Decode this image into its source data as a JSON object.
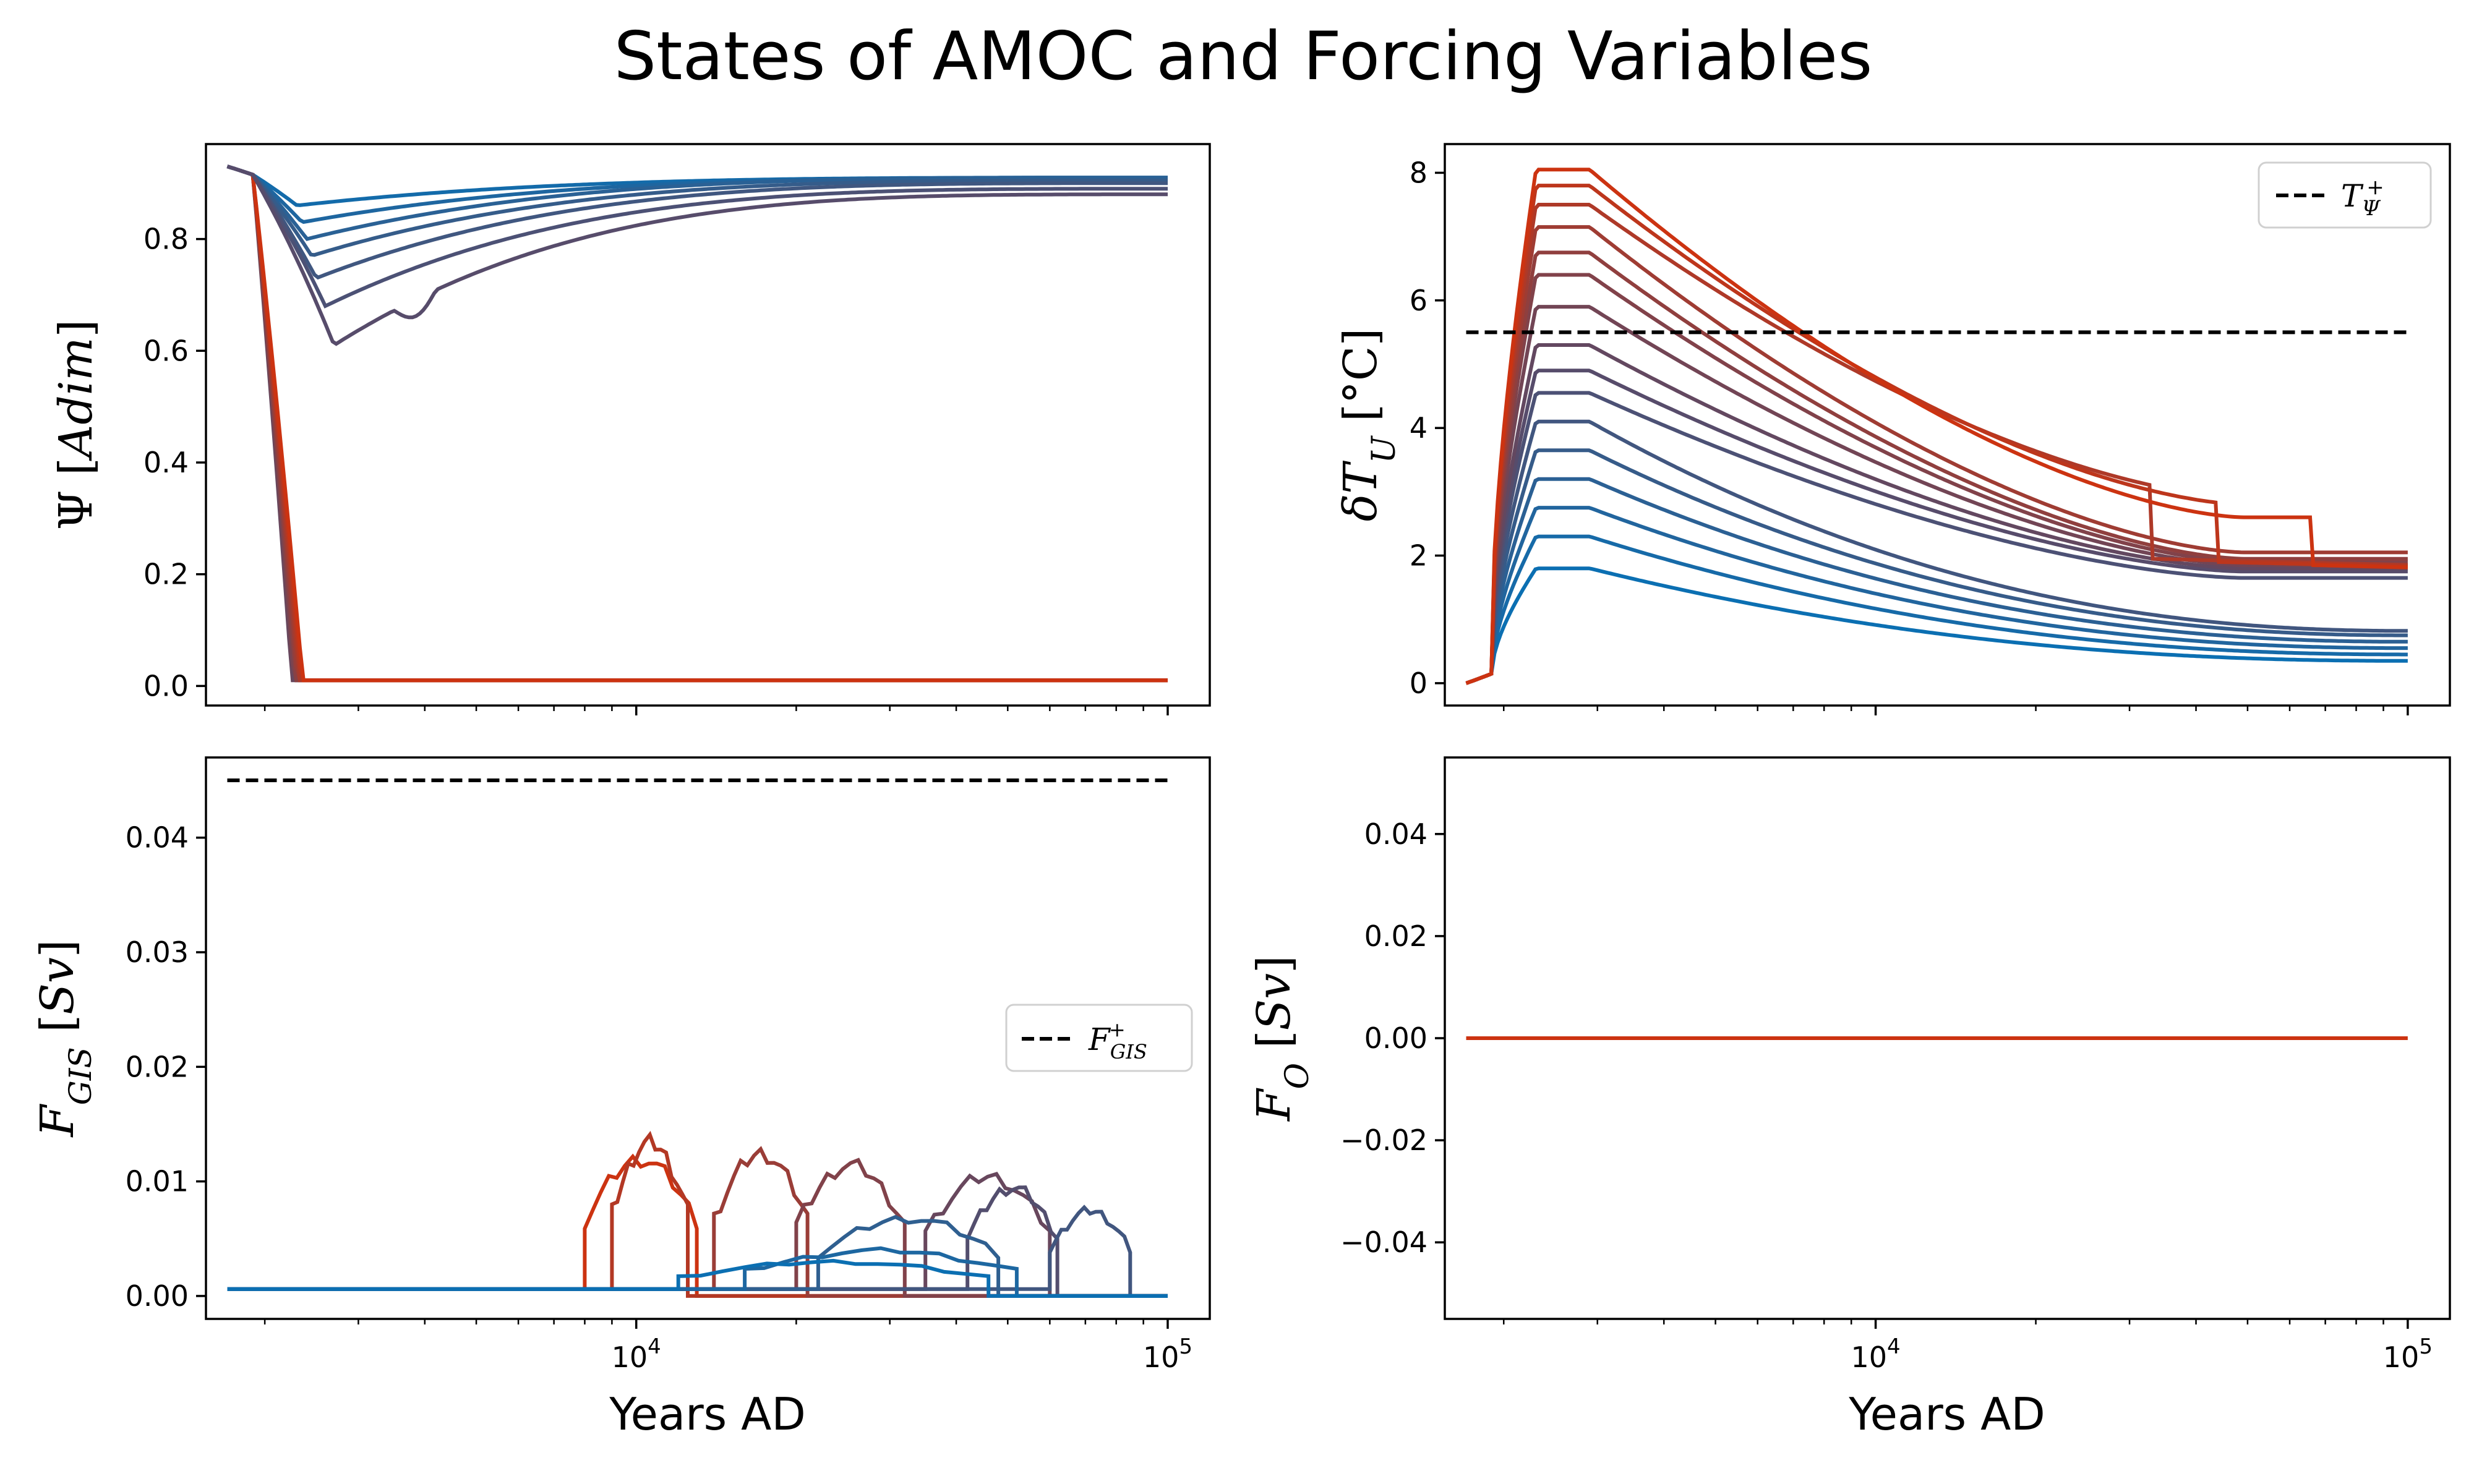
{
  "figure_title": "States of AMOC and Forcing Variables",
  "colors": {
    "start": "#0b6fb2",
    "end": "#cc3311",
    "mid": "#5c4a66",
    "threshold": "#000000"
  },
  "chart_data": [
    {
      "id": "psi",
      "type": "line",
      "ylabel": {
        "sym": "Ψ",
        "unit": "Adim"
      },
      "xscale": "log",
      "xlim": [
        1550,
        120000
      ],
      "ylim": [
        -0.035,
        0.97
      ],
      "yticks": [
        "0.0",
        "0.2",
        "0.4",
        "0.6",
        "0.8"
      ],
      "ytick_values": [
        0,
        0.2,
        0.4,
        0.6,
        0.8
      ],
      "collapse": {
        "final_value": 0.01
      },
      "recovering_runs": [
        {
          "dip_min": 0.86,
          "dip_at": 2300,
          "end_value": 0.91
        },
        {
          "dip_min": 0.83,
          "dip_at": 2350,
          "end_value": 0.91
        },
        {
          "dip_min": 0.8,
          "dip_at": 2400,
          "end_value": 0.91
        },
        {
          "dip_min": 0.77,
          "dip_at": 2450,
          "end_value": 0.905
        },
        {
          "dip_min": 0.73,
          "dip_at": 2500,
          "end_value": 0.9
        },
        {
          "dip_min": 0.68,
          "dip_at": 2600,
          "end_value": 0.89
        },
        {
          "dip_min": 0.61,
          "dip_at": 2700,
          "end_value": 0.88
        }
      ],
      "collapsing_runs": 7
    },
    {
      "id": "dtu",
      "type": "line",
      "ylabel": {
        "sym": "δT",
        "sub": "U",
        "unit": "°C"
      },
      "xscale": "log",
      "xlim": [
        1550,
        120000
      ],
      "ylim": [
        -0.35,
        8.45
      ],
      "yticks": [
        "0",
        "2",
        "4",
        "6",
        "8"
      ],
      "ytick_values": [
        0,
        2,
        4,
        6,
        8
      ],
      "threshold": {
        "value": 5.5,
        "legend_sym": "T",
        "legend_sub": "Ψ",
        "legend_sup": "+"
      },
      "legend_location": "upper right",
      "peaks": [
        1.8,
        2.3,
        2.75,
        3.2,
        3.65,
        4.1,
        4.55,
        4.9,
        5.3,
        5.9,
        6.4,
        6.75,
        7.15,
        7.5,
        7.8,
        8.05
      ],
      "end_values": [
        0.35,
        0.45,
        0.55,
        0.65,
        0.75,
        0.82,
        1.35,
        1.45,
        1.5,
        1.55,
        1.6,
        1.65,
        1.75,
        1.8,
        1.85,
        1.9
      ],
      "late_step_drops": [
        {
          "x": 33000,
          "from": 2.9,
          "to": 1.95
        },
        {
          "x": 44000,
          "from": 2.8,
          "to": 1.9
        },
        {
          "x": 66000,
          "from": 2.6,
          "to": 1.85
        }
      ]
    },
    {
      "id": "fgis",
      "type": "line",
      "ylabel": {
        "sym": "F",
        "sub": "GIS",
        "unit": "Sv"
      },
      "xlabel": "Years AD",
      "xscale": "log",
      "xlim": [
        1550,
        120000
      ],
      "xticks": [
        10000,
        100000
      ],
      "ylim": [
        -0.002,
        0.047
      ],
      "yticks": [
        "0.00",
        "0.01",
        "0.02",
        "0.03",
        "0.04"
      ],
      "ytick_values": [
        0,
        0.01,
        0.02,
        0.03,
        0.04
      ],
      "threshold": {
        "value": 0.045,
        "legend_sym": "F",
        "legend_sub": "GIS",
        "legend_sup": "+"
      },
      "legend_location": "center right",
      "baseline": 0.0006,
      "bursts": [
        {
          "start": 8000,
          "end": 13000,
          "level": 0.012
        },
        {
          "start": 9000,
          "end": 12500,
          "level": 0.0135
        },
        {
          "start": 14000,
          "end": 21000,
          "level": 0.0125
        },
        {
          "start": 20000,
          "end": 32000,
          "level": 0.0115
        },
        {
          "start": 35000,
          "end": 60000,
          "level": 0.0105
        },
        {
          "start": 42000,
          "end": 62000,
          "level": 0.0095
        },
        {
          "start": 60000,
          "end": 85000,
          "level": 0.0075
        },
        {
          "start": 22000,
          "end": 48000,
          "level": 0.0068
        },
        {
          "start": 16000,
          "end": 52000,
          "level": 0.004
        },
        {
          "start": 12000,
          "end": 46000,
          "level": 0.003
        }
      ]
    },
    {
      "id": "fo",
      "type": "line",
      "ylabel": {
        "sym": "F",
        "sub": "O",
        "unit": "Sv"
      },
      "xlabel": "Years AD",
      "xscale": "log",
      "xlim": [
        1550,
        120000
      ],
      "xticks": [
        10000,
        100000
      ],
      "ylim": [
        -0.055,
        0.055
      ],
      "yticks": [
        "−0.04",
        "−0.02",
        "0.00",
        "0.02",
        "0.04"
      ],
      "ytick_values": [
        -0.04,
        -0.02,
        0,
        0.02,
        0.04
      ],
      "series_value": 0.0,
      "x_range": [
        1700,
        100000
      ]
    }
  ]
}
